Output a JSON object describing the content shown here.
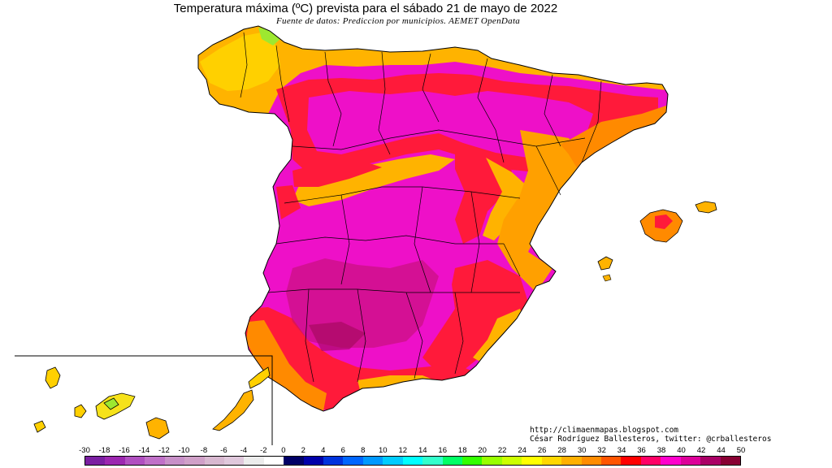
{
  "title": "Temperatura máxima (ºC) prevista para el sábado 21 de mayo de 2022",
  "subtitle": "Fuente de datos: Prediccion por municipios. AEMET OpenData",
  "credits": {
    "line1": "http://climaenmapas.blogspot.com",
    "line2": "César Rodríguez Ballesteros, twitter: @crballesteros"
  },
  "legend": {
    "tick_labels": [
      "-30",
      "-18",
      "-16",
      "-14",
      "-12",
      "-10",
      "-8",
      "-6",
      "-4",
      "-2",
      "0",
      "2",
      "4",
      "6",
      "8",
      "10",
      "12",
      "14",
      "16",
      "18",
      "20",
      "22",
      "24",
      "26",
      "28",
      "30",
      "32",
      "34",
      "36",
      "38",
      "40",
      "42",
      "44",
      "50"
    ],
    "colors": [
      "#7b1fa2",
      "#9c27b0",
      "#b04fc0",
      "#c070c8",
      "#c890c8",
      "#d0a0c8",
      "#d8b8d0",
      "#e0c8dc",
      "#ececec",
      "#ffffff",
      "#000066",
      "#0000aa",
      "#0033dd",
      "#0066ff",
      "#0099ff",
      "#00ccff",
      "#00ffff",
      "#33ffcc",
      "#00ff66",
      "#33ff00",
      "#99ff00",
      "#ccff00",
      "#ffff00",
      "#ffd700",
      "#ffb000",
      "#ff8c00",
      "#ff5500",
      "#ff0000",
      "#ff0066",
      "#ff00cc",
      "#dd0099",
      "#aa0066",
      "#880033"
    ]
  },
  "map": {
    "regions": [
      "peninsula",
      "baleares-mallorca",
      "baleares-menorca",
      "baleares-ibiza",
      "canarias"
    ],
    "colors": {
      "hottest": "#c0106a",
      "very_hot": "#ee10c8",
      "hot": "#ff1a3a",
      "warm": "#ff8a00",
      "mild": "#ffb300",
      "cool": "#f6e21a",
      "cooler": "#9de830"
    }
  }
}
